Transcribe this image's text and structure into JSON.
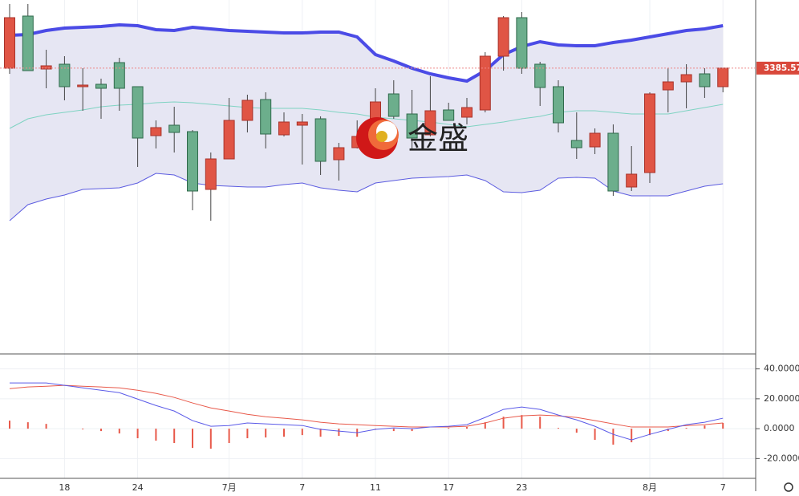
{
  "chart_data": [
    {
      "type": "candlestick",
      "watermark": "金盛",
      "categories": [
        null,
        null,
        null,
        "18",
        null,
        null,
        null,
        "24",
        null,
        null,
        null,
        null,
        "7月",
        null,
        null,
        null,
        "7",
        null,
        null,
        null,
        "11",
        null,
        null,
        null,
        "17",
        null,
        null,
        null,
        "23",
        null,
        null,
        null,
        null,
        null,
        null,
        "8月",
        null,
        null,
        null,
        "7"
      ],
      "open": [
        3385.5,
        3418,
        3385,
        3388,
        3374,
        3375.5,
        3389,
        3374,
        3343.5,
        3350,
        3346,
        3310,
        3329,
        3353,
        3366,
        3344,
        3350,
        3354,
        3328.5,
        3336,
        3344,
        3369.5,
        3357,
        3344,
        3359.5,
        3355,
        3359.5,
        3393,
        3417,
        3388,
        3374,
        3340.5,
        3336.5,
        3345,
        3311.5,
        3320.5,
        3372,
        3377,
        3382,
        3374
      ],
      "high": [
        3425.5,
        3425.5,
        3397,
        3393,
        3385.5,
        3379,
        3392,
        3374,
        3353,
        3361.5,
        3347,
        3333,
        3367,
        3369,
        3370.5,
        3358,
        3357,
        3355.5,
        3339,
        3353,
        3373,
        3378,
        3372,
        3380.5,
        3364,
        3367,
        3395.5,
        3418,
        3420.5,
        3389.5,
        3378,
        3358,
        3348,
        3350.5,
        3337,
        3370.5,
        3385.5,
        3388,
        3385.5,
        3385.5
      ],
      "low": [
        3382,
        3384,
        3373,
        3365.5,
        3359,
        3354,
        3359,
        3324,
        3335.5,
        3333,
        3297,
        3290.5,
        3329,
        3345.5,
        3335.5,
        3343,
        3325.5,
        3319,
        3315.5,
        3335.5,
        3338,
        3354,
        3335.5,
        3343,
        3353,
        3350.5,
        3358,
        3384,
        3382,
        3362,
        3345.5,
        3329,
        3332,
        3306,
        3309,
        3314,
        3358,
        3360.5,
        3367,
        3370.5
      ],
      "close": [
        3417,
        3384,
        3387,
        3374,
        3375,
        3373,
        3373,
        3342,
        3348.5,
        3345.5,
        3309,
        3329,
        3353,
        3365.5,
        3344.5,
        3352,
        3352,
        3327.5,
        3336,
        3343,
        3364.5,
        3355.5,
        3342,
        3359,
        3353,
        3361,
        3393,
        3417,
        3385.5,
        3373.5,
        3351.5,
        3336,
        3345,
        3309,
        3319.5,
        3369.5,
        3377,
        3381.5,
        3374,
        3385.57
      ],
      "up_color": "#e05545",
      "down_color": "#6cae8c",
      "series": [
        {
          "color": "#4b4be6",
          "values": [
            3406,
            3406.5,
            3409,
            3410.5,
            3411,
            3411.5,
            3412.5,
            3412,
            3409.5,
            3409,
            3411,
            3410,
            3409,
            3408.5,
            3408,
            3407.5,
            3407.5,
            3408,
            3408,
            3405,
            3394,
            3390,
            3385.5,
            3382,
            3379.5,
            3377.5,
            3384,
            3394,
            3399,
            3402,
            3400,
            3399.5,
            3399.5,
            3401.5,
            3403,
            3405,
            3407,
            3409,
            3410,
            3412
          ]
        },
        {
          "color": "#7fd3c2",
          "values": [
            3348,
            3354,
            3356.5,
            3358,
            3359.5,
            3361.5,
            3362.5,
            3363,
            3364,
            3364.5,
            3364,
            3363,
            3362,
            3361,
            3360.5,
            3360.5,
            3360.5,
            3359.5,
            3358,
            3357,
            3355,
            3354,
            3353,
            3352,
            3350.5,
            3349,
            3350.5,
            3352,
            3354,
            3355.5,
            3358,
            3359,
            3359,
            3358,
            3357,
            3357,
            3357,
            3359,
            3361,
            3363
          ]
        },
        {
          "color": "#5c5ce0",
          "values": [
            3290.5,
            3300.5,
            3304,
            3306.5,
            3310,
            3310.5,
            3311,
            3314,
            3320,
            3319,
            3314,
            3312.5,
            3312,
            3311.5,
            3311.5,
            3313,
            3314,
            3311,
            3309.5,
            3308.5,
            3314,
            3315.5,
            3317,
            3317.5,
            3318,
            3319,
            3315.5,
            3308.5,
            3308,
            3309.5,
            3317,
            3317.5,
            3317,
            3309,
            3306,
            3306,
            3306,
            3309,
            3312,
            3313.5
          ]
        }
      ],
      "ylim": [
        3208,
        3428
      ]
    },
    {
      "type": "macd",
      "series": [
        {
          "color": "#5a5ae8",
          "values": [
            30.6,
            30.6,
            30.6,
            29,
            27.3,
            25.7,
            24.1,
            19.8,
            15.5,
            11.8,
            5.4,
            1.6,
            2.1,
            3.8,
            3.2,
            2.7,
            2.1,
            -0.5,
            -1.6,
            -2.7,
            -0.5,
            0.5,
            0,
            1.1,
            1.6,
            2.7,
            7.5,
            12.9,
            14.5,
            12.9,
            9.1,
            5.9,
            1.6,
            -3.8,
            -7.5,
            -3.8,
            -0.5,
            2.7,
            4.3,
            7
          ]
        },
        {
          "color": "#e8594a",
          "values": [
            26.8,
            27.9,
            28.4,
            29,
            28.4,
            27.9,
            27.3,
            25.7,
            23.6,
            20.9,
            17.2,
            13.9,
            11.8,
            9.6,
            8,
            7,
            5.9,
            4.3,
            3.2,
            2.7,
            2.1,
            1.6,
            1.1,
            1.1,
            1.1,
            1.6,
            3.8,
            7,
            8.6,
            9.1,
            8.6,
            7.5,
            5.4,
            3.2,
            1.1,
            1.1,
            1.1,
            2.1,
            2.7,
            3.8
          ]
        },
        {
          "color": "#e8594a",
          "values": [
            5.4,
            4.3,
            3.2,
            0,
            -0.5,
            -1.6,
            -3.2,
            -6.4,
            -8,
            -9.6,
            -12.9,
            -13.4,
            -9.6,
            -6.4,
            -5.9,
            -5.4,
            -4.3,
            -5.4,
            -4.8,
            -5.4,
            -0.5,
            -1.6,
            -1.6,
            0,
            0.5,
            1.1,
            4.3,
            8,
            9.1,
            8,
            0.5,
            -2.7,
            -7.5,
            -10.7,
            -9.1,
            -4.3,
            -1.6,
            0.5,
            2.1,
            3.8
          ]
        }
      ],
      "ylim": [
        -32.7,
        50
      ],
      "yticks": [
        {
          "value": 40,
          "label": "40.0000"
        },
        {
          "value": 20,
          "label": "20.0000"
        },
        {
          "value": 0,
          "label": "0.0000"
        },
        {
          "value": -20,
          "label": "-20.0000"
        }
      ]
    }
  ]
}
